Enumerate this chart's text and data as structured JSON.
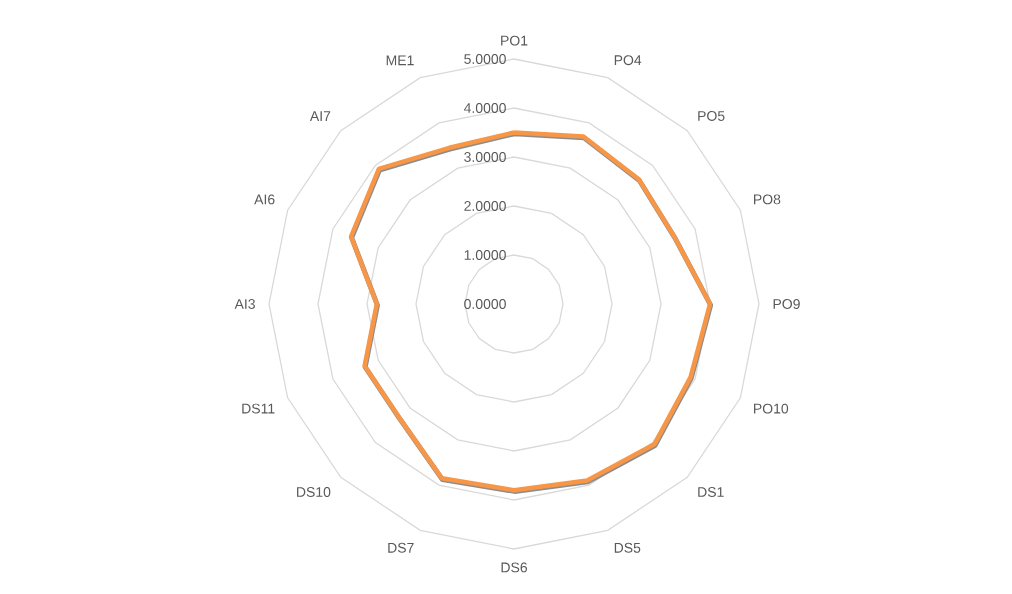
{
  "chart_data": {
    "type": "radar",
    "categories": [
      "PO1",
      "PO4",
      "PO5",
      "PO8",
      "PO9",
      "PO10",
      "DS1",
      "DS5",
      "DS6",
      "DS7",
      "DS10",
      "DS11",
      "AI3",
      "AI6",
      "AI7",
      "ME1"
    ],
    "series": [
      {
        "color": "#f79646",
        "values": [
          3.5,
          3.7,
          3.6,
          3.55,
          4.0,
          3.9,
          4.05,
          3.9,
          3.8,
          3.85,
          3.3,
          3.3,
          2.8,
          3.6,
          3.9,
          3.45
        ]
      }
    ],
    "ylim": [
      0,
      5
    ],
    "yticks": [
      {
        "value": 0,
        "label": "0.0000"
      },
      {
        "value": 1,
        "label": "1.0000"
      },
      {
        "value": 2,
        "label": "2.0000"
      },
      {
        "value": 3,
        "label": "3.0000"
      },
      {
        "value": 4,
        "label": "4.0000"
      },
      {
        "value": 5,
        "label": "5.0000"
      }
    ],
    "grid": true,
    "marker": "none",
    "line_style": "solid"
  }
}
